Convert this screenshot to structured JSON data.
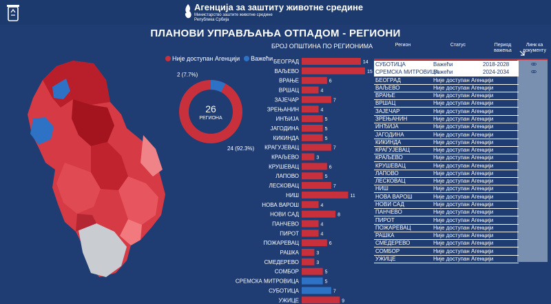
{
  "header": {
    "agency_name": "Агенција за заштиту животне средине",
    "agency_sub": "Министарство заштите животне средине",
    "agency_sub2": "Република Србија",
    "logo_icon": "recycle-bin-icon",
    "emblem_icon": "flame-emblem-icon"
  },
  "page_title": "ПЛАНОВИ УПРАВЉАЊА ОТПАДОМ - РЕГИОНИ",
  "legend": {
    "not_available": "Није доступан Агенцији",
    "valid": "Важећи"
  },
  "colors": {
    "not_available": "#c8313c",
    "valid": "#2e72c6",
    "background": "#1f3d73"
  },
  "donut": {
    "total": "26",
    "total_label": "РЕГИОНА",
    "valid_label": "2 (7.7%)",
    "not_available_label": "24 (92.3%)",
    "valid_count": 2,
    "not_available_count": 24
  },
  "bar_chart": {
    "title": "БРОЈ ОПШТИНА ПО РЕГИОНИМА",
    "chart_data": {
      "type": "bar",
      "orientation": "horizontal",
      "categories": [
        "БЕОГРАД",
        "ВАЉЕВО",
        "ВРАЊЕ",
        "ВРШАЦ",
        "ЗАЈЕЧАР",
        "ЗРЕЊАНИН",
        "ИНЂИЈА",
        "ЈАГОДИНА",
        "КИКИНДА",
        "КРАГУЈЕВАЦ",
        "КРАЉЕВО",
        "КРУШЕВАЦ",
        "ЛАПОВО",
        "ЛЕСКОВАЦ",
        "НИШ",
        "НОВА ВАРОШ",
        "НОВИ САД",
        "ПАНЧЕВО",
        "ПИРОТ",
        "ПОЖАРЕВАЦ",
        "РАШКА",
        "СМЕДЕРЕВО",
        "СОМБОР",
        "СРЕМСКА МИТРОВИЦА",
        "СУБОТИЦА",
        "УЖИЦЕ"
      ],
      "values": [
        14,
        15,
        6,
        4,
        7,
        4,
        5,
        5,
        5,
        7,
        3,
        6,
        5,
        7,
        11,
        4,
        8,
        4,
        4,
        6,
        3,
        3,
        5,
        5,
        7,
        9
      ],
      "status": [
        "n",
        "n",
        "n",
        "n",
        "n",
        "n",
        "n",
        "n",
        "n",
        "n",
        "n",
        "n",
        "n",
        "n",
        "n",
        "n",
        "n",
        "n",
        "n",
        "n",
        "n",
        "n",
        "n",
        "v",
        "v",
        "n"
      ],
      "xlim": [
        0,
        15
      ]
    }
  },
  "table": {
    "headers": {
      "region": "Регион",
      "status": "Статус",
      "period": "Период важења",
      "link": "Линк ка документу"
    },
    "link_icon": "link-icon",
    "rows": [
      {
        "region": "СУБОТИЦА",
        "status": "Важећи",
        "period": "2018-2028",
        "link": true,
        "selected": true
      },
      {
        "region": "СРЕМСКА МИТРОВИЦА",
        "status": "Важећи",
        "period": "2024-2034",
        "link": true,
        "selected": true
      },
      {
        "region": "БЕОГРАД",
        "status": "Није доступан Агенцији",
        "period": "-"
      },
      {
        "region": "ВАЉЕВО",
        "status": "Није доступан Агенцији",
        "period": "-"
      },
      {
        "region": "ВРАЊЕ",
        "status": "Није доступан Агенцији",
        "period": "-"
      },
      {
        "region": "ВРШАЦ",
        "status": "Није доступан Агенцији",
        "period": "-"
      },
      {
        "region": "ЗАЈЕЧАР",
        "status": "Није доступан Агенцији",
        "period": "-"
      },
      {
        "region": "ЗРЕЊАНИН",
        "status": "Није доступан Агенцији",
        "period": "-"
      },
      {
        "region": "ИНЂИЈА",
        "status": "Није доступан Агенцији",
        "period": "-"
      },
      {
        "region": "ЈАГОДИНА",
        "status": "Није доступан Агенцији",
        "period": "-"
      },
      {
        "region": "КИКИНДА",
        "status": "Није доступан Агенцији",
        "period": "-"
      },
      {
        "region": "КРАГУЈЕВАЦ",
        "status": "Није доступан Агенцији",
        "period": "-"
      },
      {
        "region": "КРАЉЕВО",
        "status": "Није доступан Агенцији",
        "period": "-"
      },
      {
        "region": "КРУШЕВАЦ",
        "status": "Није доступан Агенцији",
        "period": "-"
      },
      {
        "region": "ЛАПОВО",
        "status": "Није доступан Агенцији",
        "period": "-"
      },
      {
        "region": "ЛЕСКОВАЦ",
        "status": "Није доступан Агенцији",
        "period": "-"
      },
      {
        "region": "НИШ",
        "status": "Није доступан Агенцији",
        "period": "-"
      },
      {
        "region": "НОВА ВАРОШ",
        "status": "Није доступан Агенцији",
        "period": "-"
      },
      {
        "region": "НОВИ САД",
        "status": "Није доступан Агенцији",
        "period": "-"
      },
      {
        "region": "ПАНЧЕВО",
        "status": "Није доступан Агенцији",
        "period": "-"
      },
      {
        "region": "ПИРОТ",
        "status": "Није доступан Агенцији",
        "period": "-"
      },
      {
        "region": "ПОЖАРЕВАЦ",
        "status": "Није доступан Агенцији",
        "period": "-"
      },
      {
        "region": "РАШКА",
        "status": "Није доступан Агенцији",
        "period": "-"
      },
      {
        "region": "СМЕДЕРЕВО",
        "status": "Није доступан Агенцији",
        "period": "-"
      },
      {
        "region": "СОМБОР",
        "status": "Није доступан Агенцији",
        "period": "-"
      },
      {
        "region": "УЖИЦЕ",
        "status": "Није доступан Агенцији",
        "period": "-"
      }
    ]
  },
  "map": {
    "icon": "serbia-region-map"
  }
}
